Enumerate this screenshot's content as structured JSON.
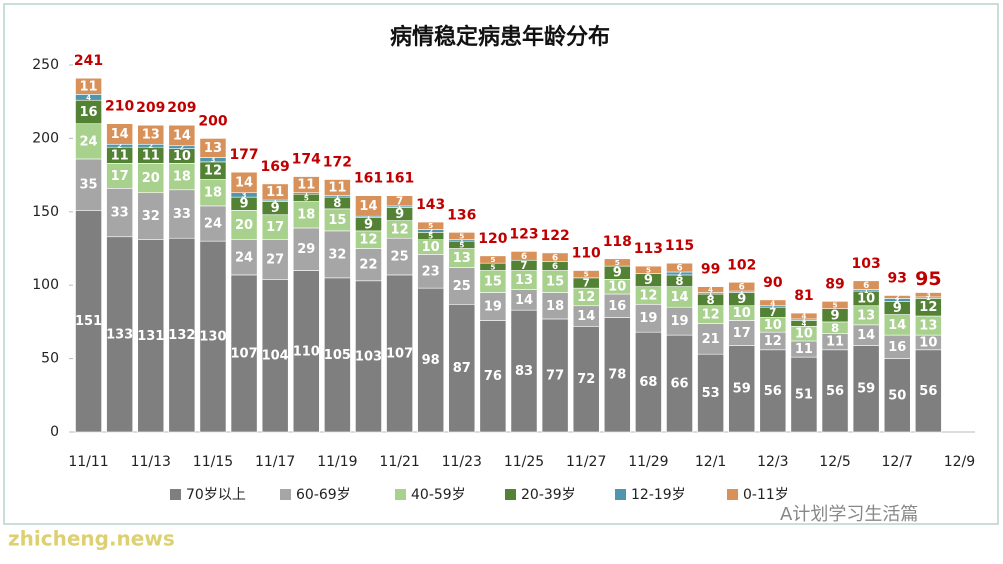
{
  "chart_data": {
    "type": "stacked-bar",
    "title": "病情稳定病患年龄分布",
    "categories": [
      "11/11",
      null,
      "11/13",
      null,
      "11/15",
      null,
      "11/17",
      null,
      "11/19",
      null,
      "11/21",
      null,
      "11/23",
      null,
      "11/25",
      null,
      "11/27",
      null,
      "11/29",
      null,
      "12/1",
      null,
      "12/3",
      null,
      "12/5",
      null,
      "12/7",
      null,
      "12/9"
    ],
    "series": [
      {
        "name": "70岁以上",
        "color": "#7f7f7f",
        "values": [
          151,
          133,
          131,
          132,
          130,
          107,
          104,
          110,
          105,
          103,
          107,
          98,
          87,
          76,
          83,
          77,
          72,
          78,
          68,
          66,
          53,
          59,
          56,
          51,
          56,
          59,
          50,
          56,
          null
        ]
      },
      {
        "name": "60-69岁",
        "color": "#a6a6a6",
        "values": [
          35,
          33,
          32,
          33,
          24,
          24,
          27,
          29,
          32,
          22,
          25,
          23,
          25,
          19,
          14,
          18,
          14,
          16,
          19,
          19,
          21,
          17,
          12,
          11,
          11,
          14,
          16,
          10,
          null
        ]
      },
      {
        "name": "40-59岁",
        "color": "#a9d18e",
        "values": [
          24,
          17,
          20,
          18,
          18,
          20,
          17,
          18,
          15,
          12,
          12,
          10,
          13,
          15,
          13,
          15,
          12,
          10,
          12,
          14,
          12,
          10,
          10,
          10,
          8,
          13,
          14,
          13,
          null
        ]
      },
      {
        "name": "20-39岁",
        "color": "#548235",
        "values": [
          16,
          11,
          11,
          10,
          12,
          9,
          9,
          5,
          8,
          9,
          9,
          5,
          5,
          5,
          7,
          6,
          7,
          9,
          9,
          8,
          8,
          9,
          7,
          4,
          9,
          10,
          9,
          12,
          null
        ]
      },
      {
        "name": "12-19岁",
        "color": "#4e95ad",
        "values": [
          4,
          2,
          2,
          2,
          3,
          3,
          1,
          1,
          1,
          1,
          1,
          2,
          1,
          0,
          0,
          0,
          0,
          0,
          0,
          2,
          1,
          1,
          1,
          1,
          0,
          1,
          2,
          1,
          null
        ]
      },
      {
        "name": "0-11岁",
        "color": "#d9915a",
        "values": [
          11,
          14,
          13,
          14,
          13,
          14,
          11,
          11,
          11,
          14,
          7,
          5,
          5,
          5,
          6,
          6,
          5,
          5,
          5,
          6,
          4,
          6,
          4,
          4,
          5,
          6,
          2,
          3,
          null
        ]
      }
    ],
    "totals": [
      241,
      210,
      209,
      209,
      200,
      177,
      169,
      174,
      172,
      161,
      161,
      143,
      136,
      120,
      123,
      122,
      110,
      118,
      113,
      115,
      99,
      102,
      90,
      81,
      89,
      103,
      93,
      95,
      null
    ],
    "total_color": "#c00000",
    "ylim": [
      0,
      250
    ],
    "yticks": [
      0,
      50,
      100,
      150,
      200,
      250
    ],
    "grid": false,
    "legend": "bottom"
  },
  "watermarks": [
    "zhicheng.news",
    "A计划学习生活篇"
  ]
}
